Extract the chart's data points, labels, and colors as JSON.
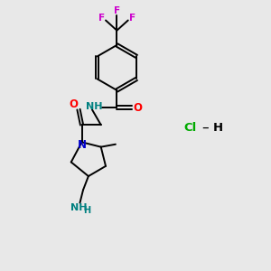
{
  "bg_color": "#e8e8e8",
  "bond_color": "#000000",
  "N_color": "#0000cd",
  "O_color": "#ff0000",
  "F_color": "#cc00cc",
  "NH_color": "#008080",
  "Cl_color": "#00aa00",
  "figsize": [
    3.0,
    3.0
  ],
  "dpi": 100,
  "xlim": [
    0,
    10
  ],
  "ylim": [
    0,
    10
  ]
}
